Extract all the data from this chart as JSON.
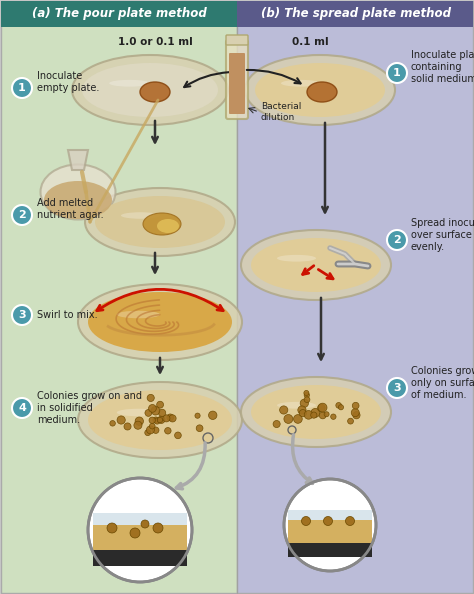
{
  "title_left": "(a) The pour plate method",
  "title_right": "(b) The spread plate method",
  "bg_left": "#cfe0c0",
  "bg_right": "#bbbcd8",
  "header_left": "#2e7a70",
  "header_right": "#5a5a8a",
  "title_color": "#ffffff",
  "step_circle_color": "#4a9aaa",
  "step_text_color": "#ffffff",
  "red_arrow_color": "#cc1100",
  "plate_rim": "#c8c0a0",
  "plate_fill": "#e8d8a8",
  "colony_color": "#a07020",
  "colony_edge": "#6a4800",
  "tube_fill": "#c09060",
  "agar_fill": "#c8a860",
  "swirl_fill": "#d4a850",
  "steps_left": [
    {
      "num": "1",
      "text": "Inoculate\nempty plate."
    },
    {
      "num": "2",
      "text": "Add melted\nnutrient agar."
    },
    {
      "num": "3",
      "text": "Swirl to mix."
    },
    {
      "num": "4",
      "text": "Colonies grow on and\nin solidified\nmedium."
    }
  ],
  "steps_right": [
    {
      "num": "1",
      "text": "Inoculate plate\ncontaining\nsolid medium."
    },
    {
      "num": "2",
      "text": "Spread inoculum\nover surface\nevenly."
    },
    {
      "num": "3",
      "text": "Colonies grow\nonly on surface\nof medium."
    }
  ],
  "label_volume_left": "1.0 or 0.1 ml",
  "label_volume_right": "0.1 ml",
  "label_bacterial": "Bacterial\ndilution",
  "fig_width": 4.74,
  "fig_height": 5.94,
  "dpi": 100
}
